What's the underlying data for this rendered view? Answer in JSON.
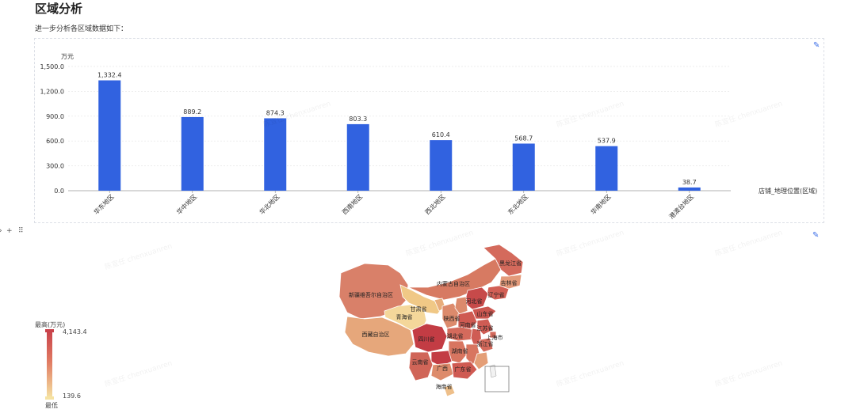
{
  "page": {
    "title": "区域分析",
    "subtitle": "进一步分析各区域数据如下："
  },
  "watermark": "陈宣任 chenxuanren",
  "chart_data": [
    {
      "type": "bar",
      "ylabel": "万元",
      "xlabel": "店铺_地理位置(区域)",
      "categories": [
        "华东地区",
        "华中地区",
        "华北地区",
        "西南地区",
        "西北地区",
        "东北地区",
        "华南地区",
        "港澳台地区"
      ],
      "values": [
        1332.4,
        889.2,
        874.3,
        803.3,
        610.4,
        568.7,
        537.9,
        38.7
      ],
      "value_labels": [
        "1,332.4",
        "889.2",
        "874.3",
        "803.3",
        "610.4",
        "568.7",
        "537.9",
        "38.7"
      ],
      "yticks": [
        "0.0",
        "300.0",
        "600.0",
        "900.0",
        "1,200.0",
        "1,500.0"
      ],
      "ylim": [
        0,
        1500
      ],
      "grid": true,
      "bar_color": "#3162e0"
    },
    {
      "type": "map",
      "legend": {
        "max_label": "最高(万元)",
        "min_label": "最低",
        "max_value": "4,143.4",
        "min_value": "139.6",
        "color_high": "#c9434b",
        "color_low": "#f5e2a2"
      },
      "provinces": [
        {
          "name": "黑龙江省",
          "color": "#d46a5c"
        },
        {
          "name": "吉林省",
          "color": "#e39a7a"
        },
        {
          "name": "辽宁省",
          "color": "#d25f55"
        },
        {
          "name": "内蒙古自治区",
          "color": "#d77a62"
        },
        {
          "name": "新疆维吾尔自治区",
          "color": "#d98069"
        },
        {
          "name": "甘肃省",
          "color": "#f0c886"
        },
        {
          "name": "宁夏",
          "color": "#e8ad7b"
        },
        {
          "name": "河北省",
          "color": "#c74a4a"
        },
        {
          "name": "山东省",
          "color": "#cc5650"
        },
        {
          "name": "青海省",
          "color": "#f4d79a"
        },
        {
          "name": "陕西省",
          "color": "#dc8a6c"
        },
        {
          "name": "河南省",
          "color": "#cf5a52"
        },
        {
          "name": "江苏省",
          "color": "#cf5c54"
        },
        {
          "name": "上海市",
          "color": "#d46a5c"
        },
        {
          "name": "西藏自治区",
          "color": "#e6a77b"
        },
        {
          "name": "四川省",
          "color": "#c33c44"
        },
        {
          "name": "湖北省",
          "color": "#d46a5c"
        },
        {
          "name": "浙江省",
          "color": "#d46a5c"
        },
        {
          "name": "湖南省",
          "color": "#d87560"
        },
        {
          "name": "云南省",
          "color": "#d06558"
        },
        {
          "name": "广西",
          "color": "#dd8b6b"
        },
        {
          "name": "广东省",
          "color": "#cf5a52"
        },
        {
          "name": "福建省",
          "color": "#e49e77"
        },
        {
          "name": "海南省",
          "color": "#eebf8a"
        }
      ]
    }
  ]
}
